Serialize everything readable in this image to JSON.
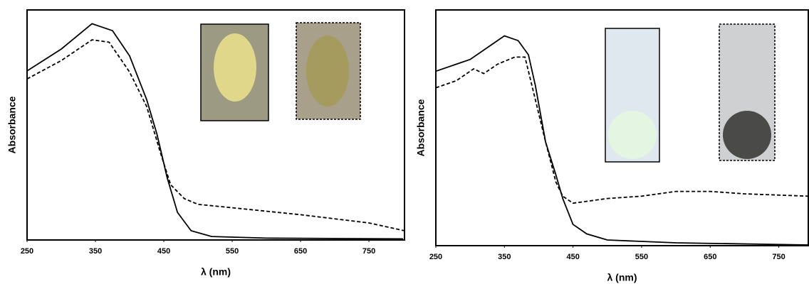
{
  "chart_data": [
    {
      "type": "line",
      "xlabel": "λ (nm)",
      "ylabel": "Absorbance",
      "xlim": [
        250,
        802
      ],
      "ylim": [
        0,
        1
      ],
      "xticks": [
        250,
        350,
        450,
        550,
        650,
        750
      ],
      "grid": false,
      "series": [
        {
          "color": "#000000",
          "dash": "solid",
          "x": [
            250,
            300,
            345,
            375,
            400,
            425,
            440,
            455,
            470,
            490,
            520,
            600,
            800
          ],
          "values": [
            0.735,
            0.83,
            0.94,
            0.91,
            0.8,
            0.61,
            0.46,
            0.27,
            0.12,
            0.04,
            0.015,
            0.008,
            0.005
          ]
        },
        {
          "color": "#000000",
          "dash": "dashed",
          "x": [
            250,
            300,
            345,
            370,
            400,
            425,
            445,
            460,
            480,
            500,
            550,
            650,
            750,
            802
          ],
          "values": [
            0.7,
            0.78,
            0.87,
            0.86,
            0.73,
            0.58,
            0.38,
            0.24,
            0.18,
            0.155,
            0.14,
            0.11,
            0.074,
            0.04
          ]
        }
      ]
    },
    {
      "type": "line",
      "xlabel": "λ (nm)",
      "ylabel": "Absorbance",
      "xlim": [
        250,
        793
      ],
      "ylim": [
        0,
        1
      ],
      "xticks": [
        250,
        350,
        450,
        550,
        650,
        750
      ],
      "grid": false,
      "series": [
        {
          "color": "#000000",
          "dash": "solid",
          "x": [
            250,
            300,
            330,
            350,
            370,
            385,
            395,
            410,
            425,
            435,
            450,
            470,
            500,
            600,
            793
          ],
          "values": [
            0.74,
            0.79,
            0.85,
            0.89,
            0.87,
            0.81,
            0.68,
            0.44,
            0.3,
            0.2,
            0.09,
            0.05,
            0.024,
            0.012,
            0.003
          ]
        },
        {
          "color": "#000000",
          "dash": "dashed",
          "x": [
            250,
            280,
            305,
            320,
            340,
            365,
            380,
            395,
            410,
            425,
            435,
            450,
            500,
            550,
            600,
            650,
            700,
            793
          ],
          "values": [
            0.67,
            0.7,
            0.75,
            0.73,
            0.77,
            0.8,
            0.8,
            0.62,
            0.44,
            0.27,
            0.21,
            0.18,
            0.2,
            0.21,
            0.23,
            0.23,
            0.22,
            0.21
          ]
        }
      ]
    }
  ]
}
